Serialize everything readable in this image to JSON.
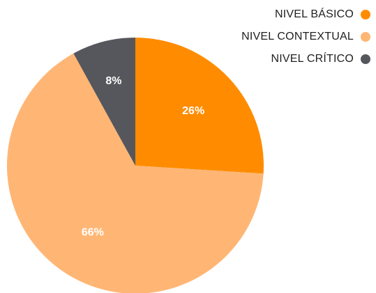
{
  "chart_data": {
    "type": "pie",
    "categories": [
      "NIVEL BÁSICO",
      "NIVEL CONTEXTUAL",
      "NIVEL CRÍTICO"
    ],
    "values": [
      26,
      66,
      8
    ],
    "data_labels": [
      "26%",
      "66%",
      "8%"
    ],
    "colors": [
      "#ff8c00",
      "#ffb675",
      "#56575c"
    ],
    "legend_position": "top-right",
    "title": "",
    "xlabel": "",
    "ylabel": ""
  }
}
